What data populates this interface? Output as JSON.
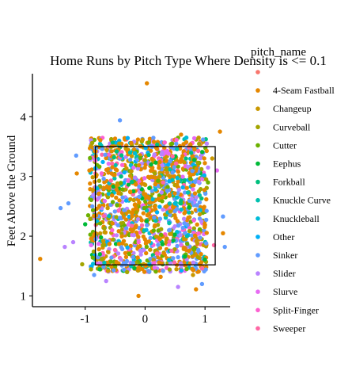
{
  "chart_data": {
    "type": "scatter",
    "title": "Home Runs by Pitch Type Where Density is <= 0.1",
    "xlabel": "",
    "ylabel": "Feet Above the Ground",
    "xlim": [
      -1.88,
      1.42
    ],
    "ylim": [
      0.82,
      4.72
    ],
    "x_ticks": [
      -1,
      0,
      1
    ],
    "x_tick_labels": [
      "-1",
      "0",
      "1"
    ],
    "y_ticks": [
      1,
      2,
      3,
      4
    ],
    "y_tick_labels": [
      "1",
      "2",
      "3",
      "4"
    ],
    "grid": false,
    "legend": {
      "title": "pitch_name",
      "position": "right",
      "entries": [
        {
          "name": "",
          "color": "#F8766D"
        },
        {
          "name": "4-Seam Fastball",
          "color": "#E58700"
        },
        {
          "name": "Changeup",
          "color": "#C99800"
        },
        {
          "name": "Curveball",
          "color": "#A3A500"
        },
        {
          "name": "Cutter",
          "color": "#6BB100"
        },
        {
          "name": "Eephus",
          "color": "#00BA38"
        },
        {
          "name": "Forkball",
          "color": "#00BF7D"
        },
        {
          "name": "Knuckle Curve",
          "color": "#00C0AF"
        },
        {
          "name": "Knuckleball",
          "color": "#00BCD8"
        },
        {
          "name": "Other",
          "color": "#00B0F6"
        },
        {
          "name": "Sinker",
          "color": "#619CFF"
        },
        {
          "name": "Slider",
          "color": "#B983FF"
        },
        {
          "name": "Slurve",
          "color": "#E76BF3"
        },
        {
          "name": "Split-Finger",
          "color": "#FD61D1"
        },
        {
          "name": "Sweeper",
          "color": "#FF67A4"
        }
      ]
    },
    "strike_zone": {
      "x": [
        -0.83,
        1.17
      ],
      "y": [
        1.52,
        3.5
      ]
    },
    "series": [
      {
        "color": "#E58700",
        "points": [
          [
            0.03,
            4.56
          ],
          [
            -1.75,
            1.62
          ],
          [
            -0.11,
            1.0
          ],
          [
            1.25,
            3.75
          ],
          [
            -0.93,
            3.1
          ],
          [
            1.3,
            2.05
          ],
          [
            0.6,
            3.7
          ],
          [
            -1.14,
            3.05
          ],
          [
            0.26,
            1.32
          ],
          [
            0.85,
            1.11
          ]
        ]
      },
      {
        "color": "#C99800",
        "points": [
          [
            -0.43,
            3.55
          ],
          [
            0.8,
            1.35
          ],
          [
            -0.62,
            1.42
          ],
          [
            1.12,
            3.3
          ]
        ]
      },
      {
        "color": "#A3A500",
        "points": [
          [
            -0.72,
            1.62
          ],
          [
            0.88,
            1.65
          ],
          [
            -1.05,
            1.53
          ],
          [
            -0.3,
            1.4
          ]
        ]
      },
      {
        "color": "#6BB100",
        "points": [
          [
            -0.95,
            2.35
          ],
          [
            1.05,
            2.9
          ],
          [
            -0.5,
            1.5
          ],
          [
            0.45,
            3.55
          ]
        ]
      },
      {
        "color": "#00BA38",
        "points": [
          [
            0.1,
            3.2
          ],
          [
            -1.0,
            2.2
          ]
        ]
      },
      {
        "color": "#00BF7D",
        "points": [
          [
            0.6,
            2.6
          ],
          [
            -0.4,
            3.0
          ]
        ]
      },
      {
        "color": "#00C0AF",
        "points": [
          [
            -0.25,
            3.4
          ],
          [
            0.7,
            2.0
          ]
        ]
      },
      {
        "color": "#00BCD8",
        "points": [
          [
            0.4,
            1.6
          ],
          [
            -0.8,
            2.8
          ]
        ]
      },
      {
        "color": "#00B0F6",
        "points": [
          [
            0.2,
            2.4
          ]
        ]
      },
      {
        "color": "#619CFF",
        "points": [
          [
            -1.41,
            2.47
          ],
          [
            1.3,
            2.33
          ],
          [
            1.33,
            1.82
          ],
          [
            -0.42,
            3.94
          ],
          [
            -1.28,
            2.55
          ],
          [
            -1.15,
            3.35
          ],
          [
            0.95,
            1.2
          ],
          [
            -0.85,
            1.35
          ]
        ]
      },
      {
        "color": "#B983FF",
        "points": [
          [
            -1.34,
            1.82
          ],
          [
            1.05,
            3.15
          ],
          [
            -1.2,
            1.9
          ],
          [
            0.55,
            1.15
          ],
          [
            -0.65,
            1.25
          ]
        ]
      },
      {
        "color": "#E76BF3",
        "points": [
          [
            1.2,
            3.1
          ],
          [
            -0.9,
            1.85
          ]
        ]
      },
      {
        "color": "#FD61D1",
        "points": [
          [
            0.15,
            1.55
          ],
          [
            -0.55,
            2.1
          ]
        ]
      },
      {
        "color": "#FF67A4",
        "points": [
          [
            1.15,
            1.85
          ],
          [
            0.3,
            2.9
          ]
        ]
      }
    ]
  }
}
